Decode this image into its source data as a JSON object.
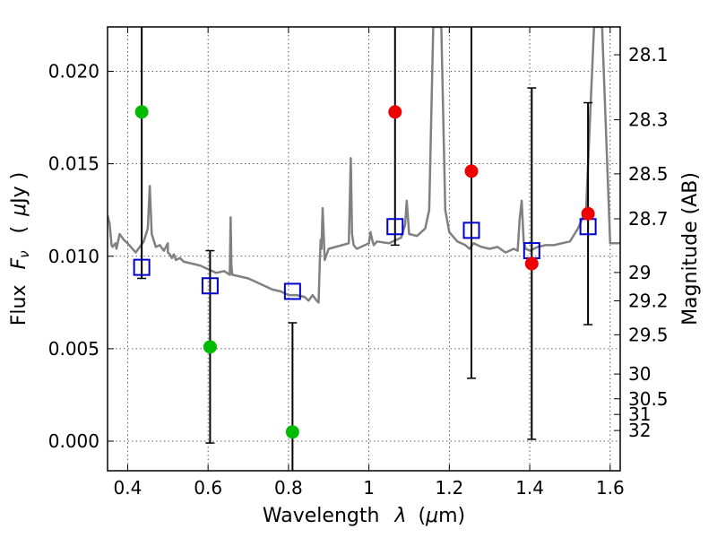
{
  "chart_data": {
    "type": "scatter",
    "xlabel_text": "Wavelength",
    "xlabel_lambda": "λ",
    "xlabel_unit_open": "(",
    "xlabel_unit_mu": "μ",
    "xlabel_unit_rest": "m)",
    "ylabel_text": "Flux",
    "ylabel_F": "F",
    "ylabel_nu": "ν",
    "ylabel_unit_open": "(",
    "ylabel_unit_mu": "μ",
    "ylabel_unit_rest": "Jy )",
    "y2label": "Magnitude (AB)",
    "xlim": [
      0.35,
      1.625
    ],
    "ylim": [
      -0.0016,
      0.0224
    ],
    "grid": true,
    "x_ticks": [
      0.4,
      0.6,
      0.8,
      1.0,
      1.2,
      1.4,
      1.6
    ],
    "x_tick_labels": [
      "0.4",
      "0.6",
      "0.8",
      "1",
      "1.2",
      "1.4",
      "1.6"
    ],
    "y_ticks": [
      0.0,
      0.005,
      0.01,
      0.015,
      0.02
    ],
    "y_tick_labels": [
      "0.000",
      "0.005",
      "0.010",
      "0.015",
      "0.020"
    ],
    "mag_ticks": [
      {
        "label": "28.1",
        "mag": 28.1
      },
      {
        "label": "28.3",
        "mag": 28.3
      },
      {
        "label": "28.5",
        "mag": 28.5
      },
      {
        "label": "28.7",
        "mag": 28.7
      },
      {
        "label": "29",
        "mag": 29.0
      },
      {
        "label": "29.2",
        "mag": 29.2
      },
      {
        "label": "29.5",
        "mag": 29.5
      },
      {
        "label": "30",
        "mag": 30.0
      },
      {
        "label": "30.5",
        "mag": 30.5
      },
      {
        "label": "31",
        "mag": 31.0
      },
      {
        "label": "32",
        "mag": 32.0
      }
    ],
    "colors": {
      "model_spectrum": "#808080",
      "model_photometry": "#0000cc",
      "detections": "#ee0000",
      "nondetections": "#00bb00",
      "errorbars": "#000000"
    },
    "model_spectrum": {
      "x": [
        0.35,
        0.355,
        0.36,
        0.362,
        0.37,
        0.372,
        0.38,
        0.39,
        0.4,
        0.42,
        0.44,
        0.45,
        0.455,
        0.46,
        0.47,
        0.48,
        0.49,
        0.5,
        0.5,
        0.505,
        0.51,
        0.515,
        0.52,
        0.53,
        0.54,
        0.56,
        0.58,
        0.6,
        0.62,
        0.64,
        0.654,
        0.656,
        0.658,
        0.66,
        0.68,
        0.7,
        0.72,
        0.74,
        0.76,
        0.78,
        0.8,
        0.82,
        0.84,
        0.85,
        0.86,
        0.87,
        0.875,
        0.878,
        0.88,
        0.882,
        0.885,
        0.89,
        0.9,
        0.95,
        0.955,
        0.958,
        0.962,
        0.97,
        1.0,
        1.004,
        1.008,
        1.012,
        1.02,
        1.05,
        1.08,
        1.09,
        1.094,
        1.1,
        1.12,
        1.14,
        1.15,
        1.16,
        1.17,
        1.18,
        1.19,
        1.2,
        1.22,
        1.24,
        1.25,
        1.26,
        1.28,
        1.3,
        1.32,
        1.34,
        1.36,
        1.37,
        1.375,
        1.38,
        1.385,
        1.39,
        1.4,
        1.42,
        1.44,
        1.46,
        1.48,
        1.5,
        1.52,
        1.54,
        1.56,
        1.58,
        1.6,
        1.625
      ],
      "y": [
        0.0122,
        0.0118,
        0.0106,
        0.0105,
        0.0107,
        0.0104,
        0.0112,
        0.0109,
        0.0107,
        0.0102,
        0.0108,
        0.0115,
        0.0138,
        0.0112,
        0.0105,
        0.0106,
        0.0103,
        0.0107,
        0.0102,
        0.0101,
        0.0099,
        0.0101,
        0.0098,
        0.0099,
        0.0097,
        0.0096,
        0.0095,
        0.0093,
        0.0091,
        0.0092,
        0.009,
        0.0121,
        0.0095,
        0.009,
        0.0089,
        0.0088,
        0.0086,
        0.0084,
        0.0082,
        0.0081,
        0.0079,
        0.0079,
        0.0078,
        0.0076,
        0.0079,
        0.0076,
        0.0075,
        0.0098,
        0.0109,
        0.0104,
        0.0126,
        0.0098,
        0.0104,
        0.0107,
        0.0153,
        0.0112,
        0.0106,
        0.0104,
        0.0107,
        0.0113,
        0.0109,
        0.0106,
        0.0108,
        0.0107,
        0.011,
        0.0117,
        0.013,
        0.0112,
        0.0111,
        0.0115,
        0.0125,
        0.0224,
        0.0224,
        0.0224,
        0.0125,
        0.0113,
        0.0108,
        0.0106,
        0.0104,
        0.0107,
        0.0105,
        0.0104,
        0.0105,
        0.0102,
        0.0104,
        0.0103,
        0.012,
        0.013,
        0.0108,
        0.0104,
        0.0103,
        0.0105,
        0.0106,
        0.0106,
        0.0107,
        0.0108,
        0.0115,
        0.0125,
        0.0224,
        0.0224,
        0.0107,
        0.0107
      ]
    },
    "model_photometry": {
      "x": [
        0.435,
        0.605,
        0.81,
        1.065,
        1.255,
        1.405,
        1.545
      ],
      "y": [
        0.0094,
        0.0084,
        0.0081,
        0.0116,
        0.0114,
        0.0103,
        0.0116
      ]
    },
    "detections": {
      "x": [
        1.065,
        1.255,
        1.405,
        1.545
      ],
      "y": [
        0.0178,
        0.0146,
        0.0096,
        0.0123
      ],
      "yerr_low": [
        0.0106,
        0.0034,
        0.0001,
        0.0063
      ],
      "yerr_high": [
        0.0224,
        0.0224,
        0.0191,
        0.0183
      ]
    },
    "nondetections": {
      "x": [
        0.435,
        0.605,
        0.81
      ],
      "y": [
        0.0178,
        0.0051,
        0.0005
      ],
      "yerr_low": [
        0.0088,
        -0.0001,
        -0.0016
      ],
      "yerr_high": [
        0.0224,
        0.0103,
        0.0064
      ]
    }
  }
}
